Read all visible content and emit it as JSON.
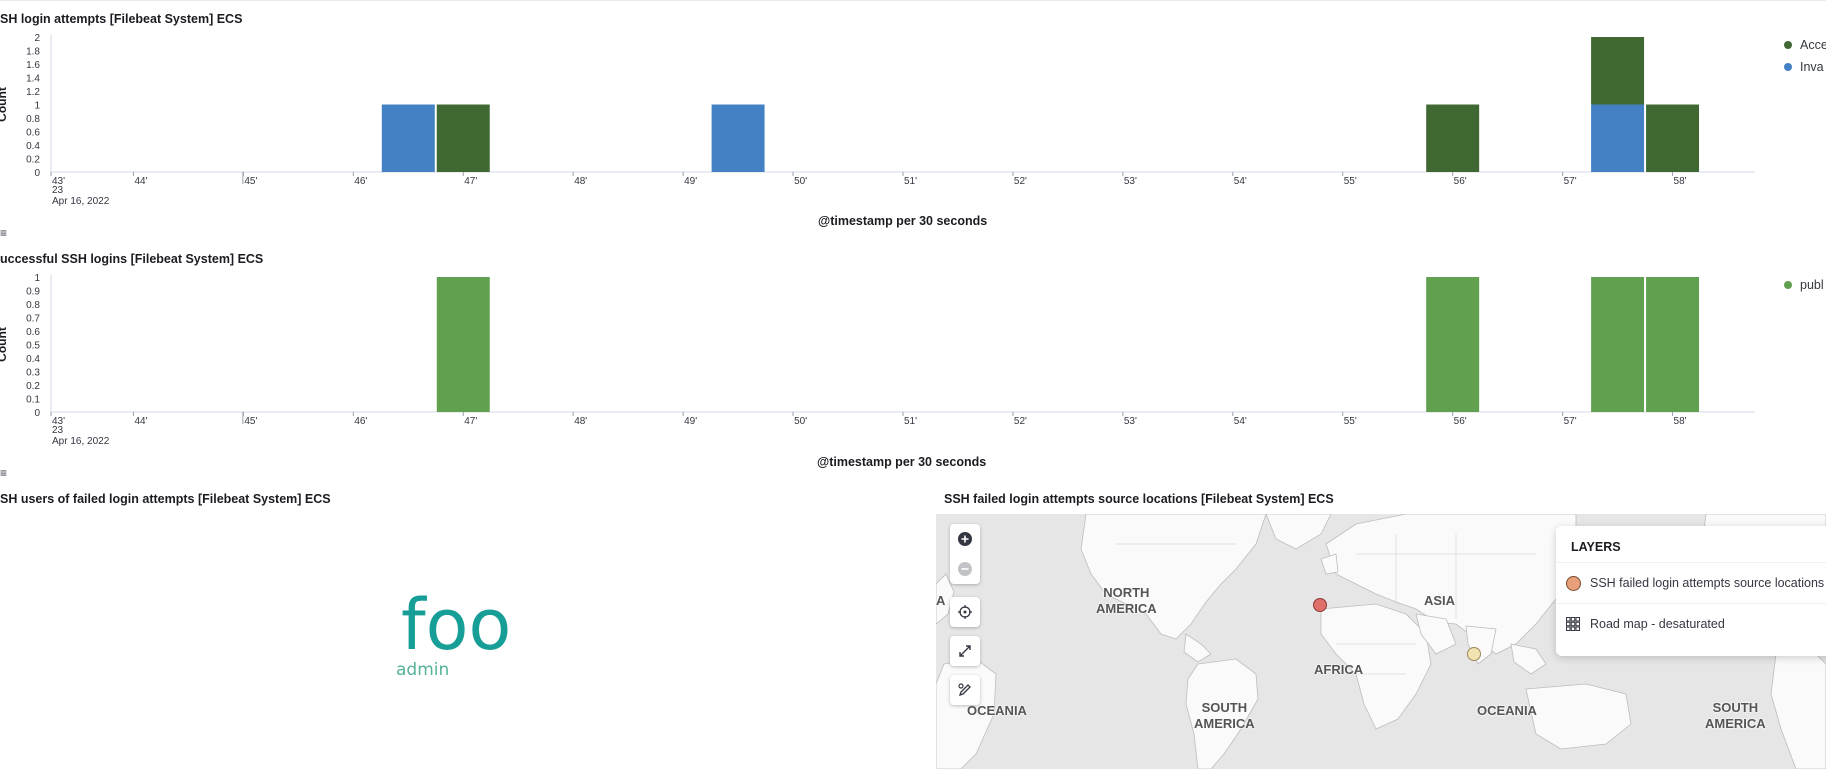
{
  "chart1": {
    "title": "SH login attempts [Filebeat System] ECS",
    "ylabel": "Count",
    "x_axis_title": "@timestamp per 30 seconds",
    "date_label_1": "23",
    "date_label_2": "Apr 16, 2022",
    "legend": [
      {
        "label": "Acce",
        "color": "#3f6833"
      },
      {
        "label": "Inva",
        "color": "#4380c4"
      }
    ]
  },
  "chart2": {
    "title": "uccessful SSH logins [Filebeat System] ECS",
    "ylabel": "Count",
    "x_axis_title": "@timestamp per 30 seconds",
    "date_label_1": "23",
    "date_label_2": "Apr 16, 2022",
    "legend": [
      {
        "label": "publ",
        "color": "#60a04f"
      }
    ]
  },
  "wordcloud": {
    "title": "SH users of failed login attempts [Filebeat System] ECS",
    "words": [
      {
        "text": "foo",
        "color": "#169e97"
      },
      {
        "text": "admin",
        "color": "#54b399"
      }
    ]
  },
  "map": {
    "title": "SSH failed login attempts source locations [Filebeat System] ECS",
    "layers_title": "LAYERS",
    "layers": [
      {
        "label": "SSH failed login attempts source locations",
        "icon": "circle-marker-icon",
        "color": "#e7a07a"
      },
      {
        "label": "Road map - desaturated",
        "icon": "grid-icon"
      }
    ],
    "continents": {
      "north_america": "NORTH\nAMERICA",
      "asia": "ASIA",
      "africa": "AFRICA",
      "oceania_left": "OCEANIA",
      "oceania_right": "OCEANIA",
      "south_america_left": "SOUTH\nAMERICA",
      "south_america_right": "SOUTH\nAMERICA",
      "edge_a": "A"
    },
    "controls": [
      "zoom-in-icon",
      "zoom-out-icon",
      "locate-icon",
      "fullscreen-icon",
      "draw-tool-icon"
    ]
  },
  "chart_data": [
    {
      "type": "bar",
      "stacked": true,
      "title": "SH login attempts [Filebeat System] ECS",
      "xlabel": "@timestamp per 30 seconds",
      "ylabel": "Count",
      "ylim": [
        0,
        2
      ],
      "yticks": [
        "0",
        "0.2",
        "0.4",
        "0.6",
        "0.8",
        "1",
        "1.2",
        "1.4",
        "1.6",
        "1.8",
        "2"
      ],
      "xticks": [
        "43'",
        "44'",
        "45'",
        "46'",
        "47'",
        "48'",
        "49'",
        "50'",
        "51'",
        "52'",
        "53'",
        "54'",
        "55'",
        "56'",
        "57'",
        "58'"
      ],
      "x_range_minutes": [
        43.25,
        58.75
      ],
      "legend_position": "right",
      "series": [
        {
          "name": "Acce",
          "color": "#3f6833",
          "points": [
            [
              47.0,
              1
            ],
            [
              56.0,
              1
            ],
            [
              57.5,
              1
            ],
            [
              58.0,
              1
            ]
          ]
        },
        {
          "name": "Inva",
          "color": "#4380c4",
          "points": [
            [
              46.5,
              1
            ],
            [
              49.5,
              1
            ],
            [
              57.5,
              1
            ]
          ]
        }
      ]
    },
    {
      "type": "bar",
      "stacked": true,
      "title": "uccessful SSH logins [Filebeat System] ECS",
      "xlabel": "@timestamp per 30 seconds",
      "ylabel": "Count",
      "ylim": [
        0,
        1
      ],
      "yticks": [
        "0",
        "0.1",
        "0.2",
        "0.3",
        "0.4",
        "0.5",
        "0.6",
        "0.7",
        "0.8",
        "0.9",
        "1"
      ],
      "xticks": [
        "43'",
        "44'",
        "45'",
        "46'",
        "47'",
        "48'",
        "49'",
        "50'",
        "51'",
        "52'",
        "53'",
        "54'",
        "55'",
        "56'",
        "57'",
        "58'"
      ],
      "x_range_minutes": [
        43.25,
        58.75
      ],
      "legend_position": "right",
      "series": [
        {
          "name": "publ",
          "color": "#60a04f",
          "points": [
            [
              47.0,
              1
            ],
            [
              56.0,
              1
            ],
            [
              57.5,
              1
            ],
            [
              58.0,
              1
            ]
          ]
        }
      ]
    }
  ]
}
